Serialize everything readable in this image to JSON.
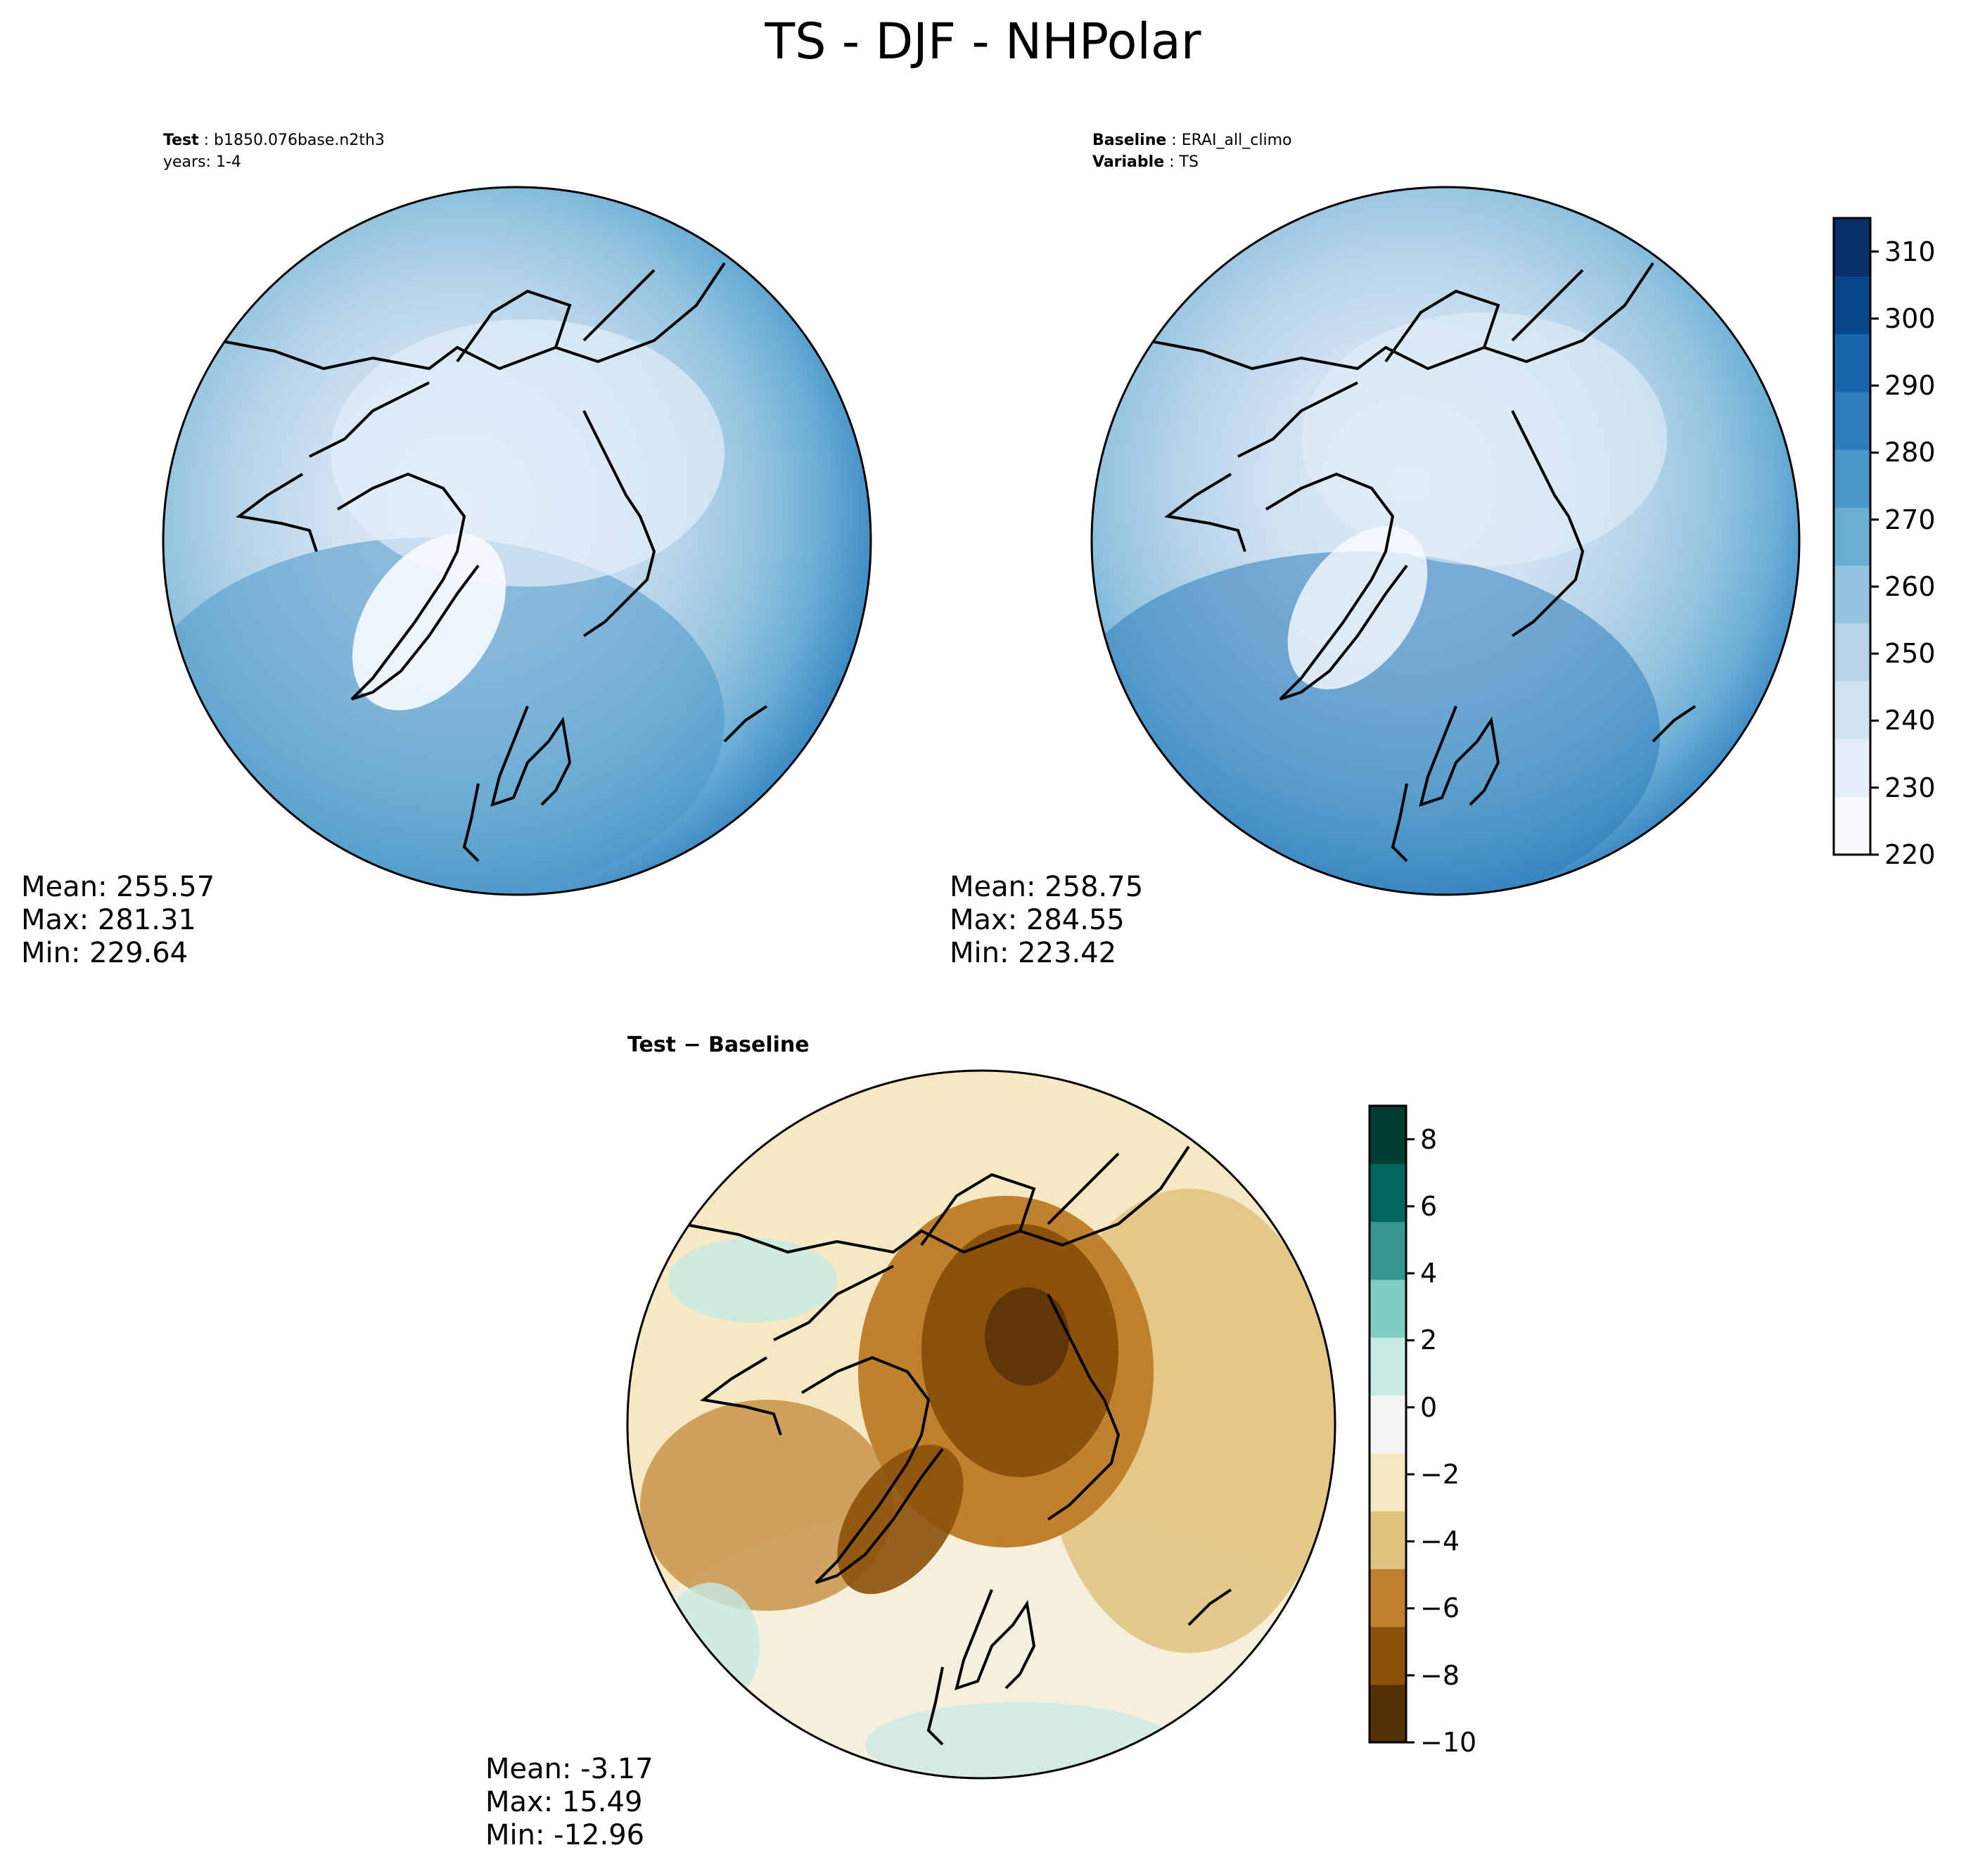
{
  "title": "TS - DJF - NHPolar",
  "colors": {
    "blues": [
      "#f7fbff",
      "#e3eef9",
      "#d0e1f2",
      "#b7d4ea",
      "#94c4df",
      "#6aaed6",
      "#4a98c9",
      "#2e7ebc",
      "#1764ab",
      "#08468b",
      "#08306b"
    ],
    "brbg": [
      "#543005",
      "#8c510a",
      "#bf812d",
      "#dfc27d",
      "#f6e8c3",
      "#f5f5f5",
      "#c7eae5",
      "#80cdc1",
      "#35978f",
      "#01665e",
      "#003c30"
    ],
    "ocean_test": "#2f84c2",
    "ocean_base": "#2e7ebc",
    "pole_light": "#dceaf6"
  },
  "panels": {
    "test": {
      "label_bold": "Test",
      "label_text": "b1850.076base.n2th3",
      "line2": "years: 1-4",
      "mean": "Mean: 255.57",
      "max": "Max: 281.31",
      "min": "Min: 229.64"
    },
    "baseline": {
      "label_bold": "Baseline",
      "label_text": "ERAI_all_climo",
      "line2_bold": "Variable",
      "line2_text": "TS",
      "mean": "Mean: 258.75",
      "max": "Max: 284.55",
      "min": "Min: 223.42"
    },
    "diff": {
      "title": "Test − Baseline",
      "mean": "Mean: -3.17",
      "max": "Max: 15.49",
      "min": "Min: -12.96"
    }
  },
  "chart_data": [
    {
      "type": "heatmap",
      "name": "test",
      "projection": "north polar stereographic",
      "colorbar_ticks": [
        220,
        230,
        240,
        250,
        260,
        270,
        280,
        290,
        300,
        310
      ],
      "colorbar_range": [
        220,
        315
      ],
      "stats": {
        "mean": 255.57,
        "max": 281.31,
        "min": 229.64
      }
    },
    {
      "type": "heatmap",
      "name": "baseline",
      "projection": "north polar stereographic",
      "colorbar_ticks": [
        220,
        230,
        240,
        250,
        260,
        270,
        280,
        290,
        300,
        310
      ],
      "colorbar_range": [
        220,
        315
      ],
      "stats": {
        "mean": 258.75,
        "max": 284.55,
        "min": 223.42
      }
    },
    {
      "type": "heatmap",
      "name": "difference",
      "projection": "north polar stereographic",
      "colorbar_ticks": [
        8,
        6,
        4,
        2,
        0,
        -2,
        -4,
        -6,
        -8,
        -10
      ],
      "colorbar_tick_labels": [
        "8",
        "6",
        "4",
        "2",
        "0",
        "−2",
        "−4",
        "−6",
        "−8",
        "−10"
      ],
      "colorbar_range": [
        -10,
        9
      ],
      "stats": {
        "mean": -3.17,
        "max": 15.49,
        "min": -12.96
      }
    }
  ]
}
